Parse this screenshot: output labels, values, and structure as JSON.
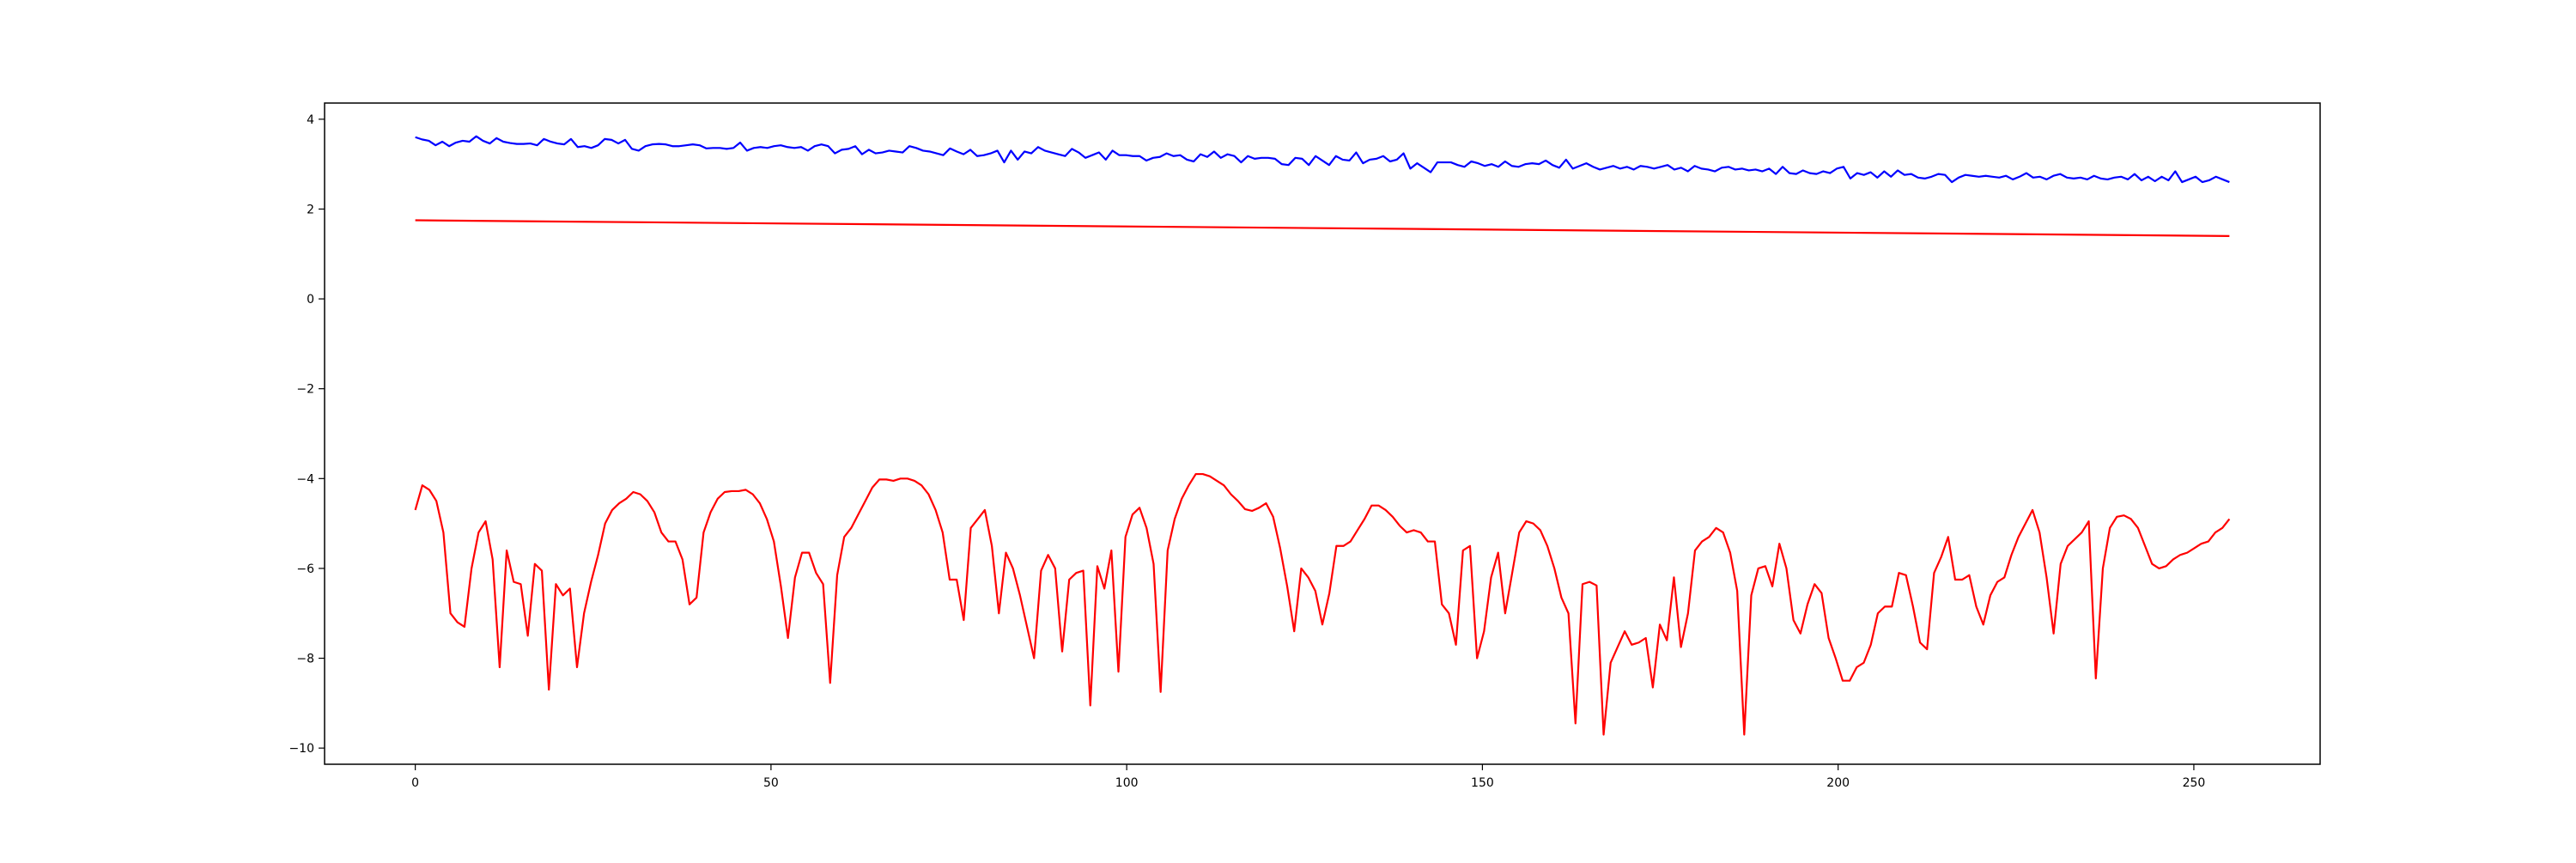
{
  "chart_data": {
    "type": "line",
    "title": "",
    "xlabel": "",
    "ylabel": "",
    "xlim": [
      -12.75,
      267.75
    ],
    "ylim": [
      -10.36,
      4.36
    ],
    "x_ticks": [
      0,
      50,
      100,
      150,
      200,
      250
    ],
    "x_tick_labels": [
      "0",
      "50",
      "100",
      "150",
      "200",
      "250"
    ],
    "y_ticks": [
      4,
      2,
      0,
      -2,
      -4,
      -6,
      -8,
      -10
    ],
    "y_tick_labels": [
      "4",
      "2",
      "0",
      "−2",
      "−4",
      "−6",
      "−8",
      "−10"
    ],
    "grid": false,
    "legend": null,
    "x_start": 0,
    "x_end": 255,
    "series": [
      {
        "color": "#0000ff",
        "values": [
          3.6,
          3.55,
          3.52,
          3.42,
          3.5,
          3.4,
          3.48,
          3.52,
          3.5,
          3.62,
          3.52,
          3.46,
          3.58,
          3.5,
          3.47,
          3.45,
          3.45,
          3.46,
          3.42,
          3.56,
          3.5,
          3.46,
          3.44,
          3.56,
          3.38,
          3.4,
          3.36,
          3.42,
          3.56,
          3.54,
          3.46,
          3.54,
          3.34,
          3.3,
          3.4,
          3.44,
          3.45,
          3.44,
          3.4,
          3.4,
          3.42,
          3.44,
          3.42,
          3.35,
          3.36,
          3.36,
          3.34,
          3.36,
          3.48,
          3.3,
          3.36,
          3.38,
          3.36,
          3.4,
          3.42,
          3.38,
          3.36,
          3.38,
          3.3,
          3.4,
          3.44,
          3.4,
          3.24,
          3.32,
          3.34,
          3.4,
          3.22,
          3.32,
          3.24,
          3.26,
          3.3,
          3.28,
          3.26,
          3.4,
          3.36,
          3.3,
          3.28,
          3.24,
          3.2,
          3.35,
          3.28,
          3.22,
          3.32,
          3.18,
          3.2,
          3.24,
          3.3,
          3.04,
          3.3,
          3.1,
          3.28,
          3.24,
          3.38,
          3.3,
          3.26,
          3.22,
          3.18,
          3.34,
          3.26,
          3.14,
          3.2,
          3.26,
          3.1,
          3.3,
          3.2,
          3.2,
          3.18,
          3.18,
          3.08,
          3.14,
          3.16,
          3.24,
          3.18,
          3.2,
          3.1,
          3.06,
          3.22,
          3.16,
          3.28,
          3.14,
          3.22,
          3.18,
          3.04,
          3.18,
          3.12,
          3.14,
          3.14,
          3.12,
          3.0,
          2.98,
          3.14,
          3.12,
          2.98,
          3.18,
          3.08,
          2.98,
          3.18,
          3.1,
          3.08,
          3.26,
          3.02,
          3.1,
          3.12,
          3.18,
          3.06,
          3.1,
          3.24,
          2.9,
          3.02,
          2.92,
          2.82,
          3.04,
          3.04,
          3.04,
          2.98,
          2.94,
          3.06,
          3.02,
          2.96,
          3.0,
          2.94,
          3.06,
          2.96,
          2.94,
          3.0,
          3.02,
          3.0,
          3.08,
          2.98,
          2.92,
          3.1,
          2.9,
          2.96,
          3.02,
          2.94,
          2.88,
          2.92,
          2.96,
          2.9,
          2.94,
          2.88,
          2.96,
          2.94,
          2.9,
          2.94,
          2.98,
          2.88,
          2.92,
          2.84,
          2.96,
          2.9,
          2.88,
          2.84,
          2.92,
          2.94,
          2.88,
          2.9,
          2.86,
          2.88,
          2.84,
          2.9,
          2.78,
          2.94,
          2.8,
          2.78,
          2.86,
          2.8,
          2.78,
          2.84,
          2.8,
          2.9,
          2.94,
          2.68,
          2.8,
          2.76,
          2.82,
          2.7,
          2.84,
          2.72,
          2.86,
          2.76,
          2.78,
          2.7,
          2.68,
          2.72,
          2.78,
          2.76,
          2.6,
          2.7,
          2.76,
          2.74,
          2.72,
          2.74,
          2.72,
          2.7,
          2.74,
          2.66,
          2.72,
          2.8,
          2.7,
          2.72,
          2.66,
          2.74,
          2.78,
          2.7,
          2.68,
          2.7,
          2.66,
          2.74,
          2.68,
          2.66,
          2.7,
          2.72,
          2.66,
          2.78,
          2.64,
          2.72,
          2.62,
          2.72,
          2.64,
          2.84,
          2.6,
          2.66,
          2.72,
          2.6,
          2.64,
          2.72,
          2.66,
          2.6
        ]
      },
      {
        "color": "#ff0000",
        "values_from_endpoints": [
          1.75,
          1.4
        ]
      },
      {
        "color": "#ff0000",
        "values": [
          -4.7,
          -4.15,
          -4.25,
          -4.5,
          -5.2,
          -7.0,
          -7.2,
          -7.3,
          -6.0,
          -5.2,
          -4.95,
          -5.8,
          -8.2,
          -5.6,
          -6.3,
          -6.35,
          -7.5,
          -5.9,
          -6.05,
          -8.7,
          -6.35,
          -6.6,
          -6.45,
          -8.2,
          -7.0,
          -6.3,
          -5.7,
          -5.0,
          -4.7,
          -4.55,
          -4.45,
          -4.3,
          -4.35,
          -4.5,
          -4.75,
          -5.2,
          -5.4,
          -5.4,
          -5.8,
          -6.8,
          -6.65,
          -5.2,
          -4.75,
          -4.45,
          -4.3,
          -4.28,
          -4.28,
          -4.25,
          -4.35,
          -4.55,
          -4.9,
          -5.4,
          -6.4,
          -7.55,
          -6.2,
          -5.65,
          -5.65,
          -6.1,
          -6.35,
          -8.55,
          -6.15,
          -5.3,
          -5.1,
          -4.8,
          -4.5,
          -4.2,
          -4.02,
          -4.02,
          -4.05,
          -4.0,
          -4.0,
          -4.05,
          -4.15,
          -4.35,
          -4.7,
          -5.2,
          -6.25,
          -6.25,
          -7.15,
          -5.1,
          -4.9,
          -4.7,
          -5.5,
          -7.0,
          -5.65,
          -6.0,
          -6.6,
          -7.3,
          -8.0,
          -6.05,
          -5.7,
          -6.0,
          -7.85,
          -6.25,
          -6.1,
          -6.05,
          -9.05,
          -5.95,
          -6.45,
          -5.6,
          -8.3,
          -5.3,
          -4.8,
          -4.65,
          -5.1,
          -5.9,
          -8.75,
          -5.6,
          -4.9,
          -4.45,
          -4.15,
          -3.9,
          -3.9,
          -3.95,
          -4.05,
          -4.15,
          -4.35,
          -4.5,
          -4.68,
          -4.72,
          -4.65,
          -4.55,
          -4.85,
          -5.55,
          -6.4,
          -7.4,
          -6.0,
          -6.2,
          -6.5,
          -7.25,
          -6.55,
          -5.5,
          -5.5,
          -5.4,
          -5.15,
          -4.9,
          -4.6,
          -4.6,
          -4.7,
          -4.85,
          -5.05,
          -5.2,
          -5.15,
          -5.2,
          -5.4,
          -5.4,
          -6.8,
          -7.0,
          -7.7,
          -5.6,
          -5.5,
          -8.0,
          -7.4,
          -6.2,
          -5.65,
          -7.0,
          -6.1,
          -5.2,
          -4.95,
          -5.0,
          -5.15,
          -5.5,
          -6.0,
          -6.65,
          -7.0,
          -9.45,
          -6.35,
          -6.3,
          -6.38,
          -9.7,
          -8.1,
          -7.75,
          -7.4,
          -7.7,
          -7.65,
          -7.55,
          -8.65,
          -7.25,
          -7.6,
          -6.2,
          -7.75,
          -7.0,
          -5.6,
          -5.4,
          -5.3,
          -5.1,
          -5.2,
          -5.65,
          -6.5,
          -9.7,
          -6.6,
          -6.0,
          -5.95,
          -6.4,
          -5.45,
          -6.0,
          -7.15,
          -7.45,
          -6.8,
          -6.35,
          -6.55,
          -7.55,
          -8.0,
          -8.5,
          -8.5,
          -8.2,
          -8.1,
          -7.7,
          -7.0,
          -6.85,
          -6.85,
          -6.1,
          -6.15,
          -6.85,
          -7.65,
          -7.8,
          -6.1,
          -5.75,
          -5.3,
          -6.25,
          -6.25,
          -6.15,
          -6.85,
          -7.25,
          -6.6,
          -6.3,
          -6.2,
          -5.7,
          -5.3,
          -5.0,
          -4.7,
          -5.2,
          -6.2,
          -7.45,
          -5.9,
          -5.5,
          -5.35,
          -5.2,
          -4.95,
          -8.45,
          -6.0,
          -5.1,
          -4.85,
          -4.82,
          -4.9,
          -5.1,
          -5.5,
          -5.9,
          -6.0,
          -5.95,
          -5.8,
          -5.7,
          -5.65,
          -5.55,
          -5.45,
          -5.4,
          -5.2,
          -5.1,
          -4.9
        ]
      }
    ]
  }
}
